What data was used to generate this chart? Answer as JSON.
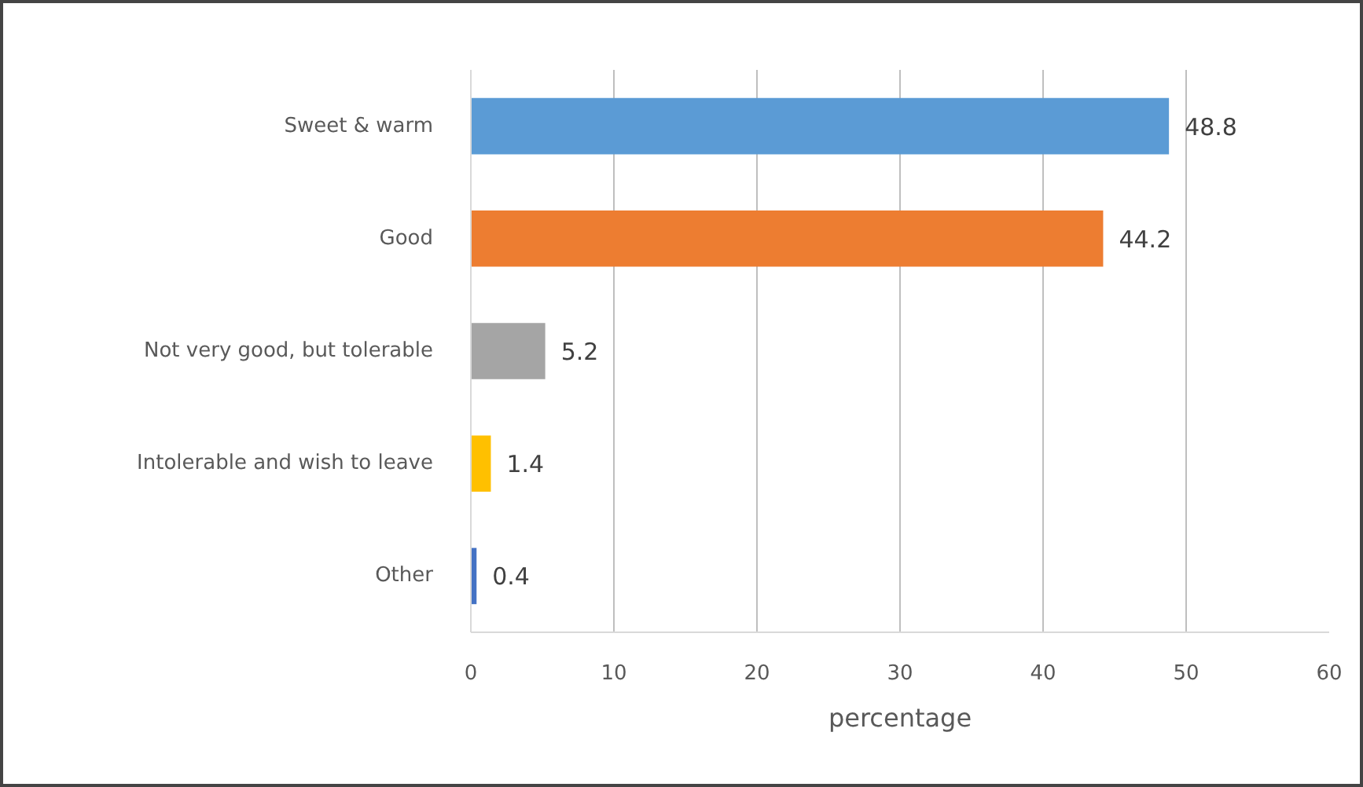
{
  "chart_data": {
    "type": "bar",
    "orientation": "horizontal",
    "categories": [
      "Sweet & warm",
      "Good",
      "Not very good, but tolerable",
      "Intolerable and wish to leave",
      "Other"
    ],
    "values": [
      48.8,
      44.2,
      5.2,
      1.4,
      0.4
    ],
    "colors": [
      "#5b9bd5",
      "#ed7d31",
      "#a5a5a5",
      "#ffc000",
      "#4472c4"
    ],
    "xlim": [
      0,
      60
    ],
    "xticks": [
      0,
      10,
      20,
      30,
      40,
      50,
      60
    ],
    "xlabel": "percentage",
    "grid": "x",
    "data_labels": true
  }
}
